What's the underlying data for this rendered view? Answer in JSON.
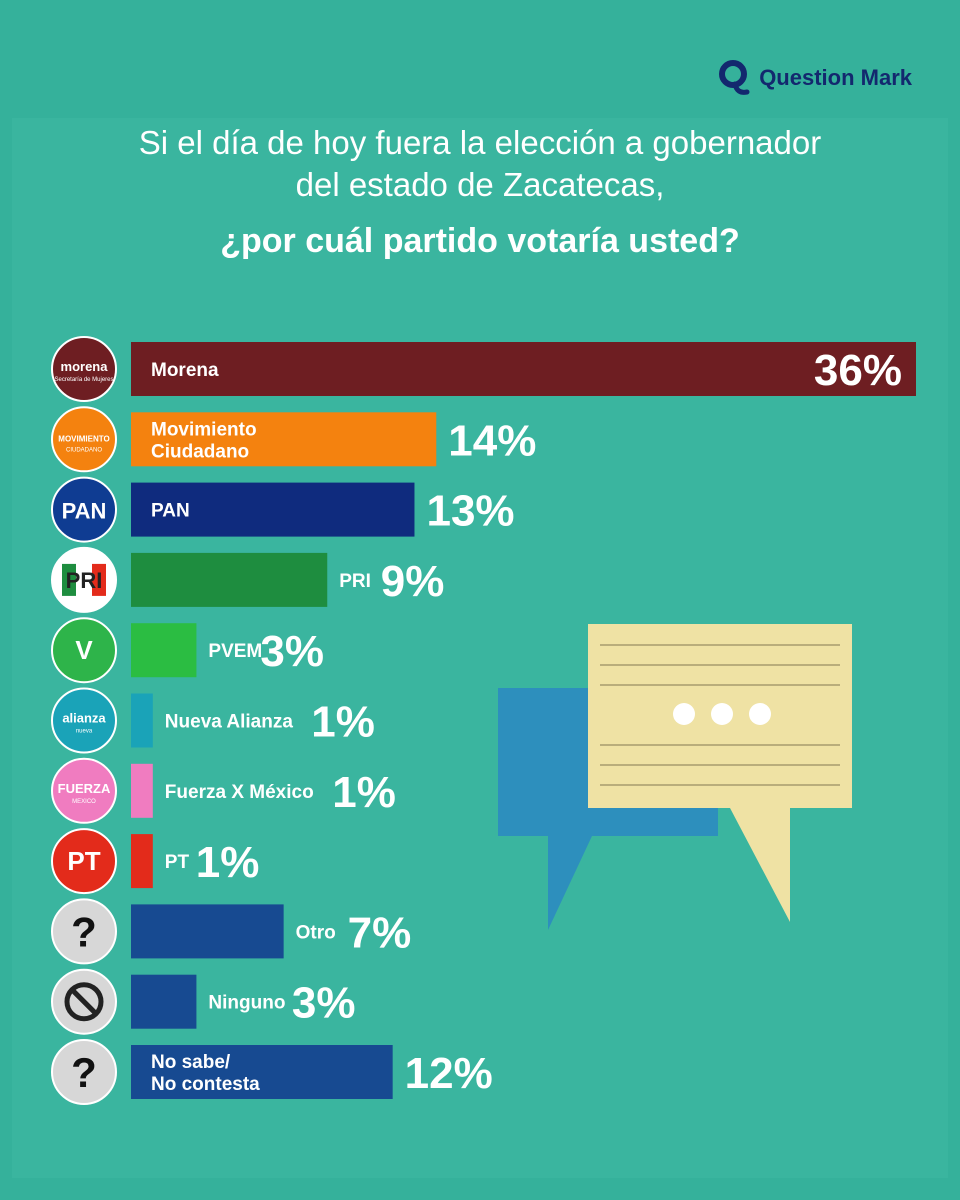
{
  "brand": {
    "name": "Question Mark",
    "mark": "Q"
  },
  "title": {
    "line1": "Si el día de hoy fuera la elección a gobernador",
    "line2": "del estado de Zacatecas,",
    "line3": "¿por cuál partido votaría usted?"
  },
  "colors": {
    "background": "#35b19b",
    "accent_dark": "#13286e"
  },
  "chart_data": {
    "type": "bar",
    "orientation": "horizontal",
    "title": "¿por cuál partido votaría usted?",
    "unit": "%",
    "categories": [
      "Morena",
      "Movimiento Ciudadano",
      "PAN",
      "PRI",
      "PVEM",
      "Nueva Alianza",
      "Fuerza X México",
      "PT",
      "Otro",
      "Ninguno",
      "No sabe/ No contesta"
    ],
    "values": [
      36,
      14,
      13,
      9,
      3,
      1,
      1,
      1,
      7,
      3,
      12
    ],
    "value_labels": [
      "36%",
      "14%",
      "13%",
      "9%",
      "3%",
      "1%",
      "1%",
      "1%",
      "7%",
      "3%",
      "12%"
    ],
    "label_lines": [
      [
        "Morena"
      ],
      [
        "Movimiento",
        "Ciudadano"
      ],
      [
        "PAN"
      ],
      [
        "PRI"
      ],
      [
        "PVEM"
      ],
      [
        "Nueva Alianza"
      ],
      [
        "Fuerza X México"
      ],
      [
        "PT"
      ],
      [
        "Otro"
      ],
      [
        "Ninguno"
      ],
      [
        "No sabe/",
        "No contesta"
      ]
    ],
    "colors": [
      "#6e1e22",
      "#f4820f",
      "#0f2b7e",
      "#1e8d3f",
      "#2bbd42",
      "#1aa3b8",
      "#f07cc0",
      "#e32b1b",
      "#174a91",
      "#174a91",
      "#174a91"
    ],
    "logos": [
      {
        "icon": "morena-logo-icon",
        "text": "morena",
        "subtext": "Secretaría de Mujeres",
        "bg": "#6e1e22"
      },
      {
        "icon": "movimiento-ciudadano-logo-icon",
        "text": "MOVIMIENTO",
        "subtext": "CIUDADANO",
        "bg": "#f4820f"
      },
      {
        "icon": "pan-logo-icon",
        "text": "PAN",
        "bg": "#0f3c92"
      },
      {
        "icon": "pri-logo-icon",
        "text": "PRI",
        "bg": "#ffffff"
      },
      {
        "icon": "pvem-logo-icon",
        "text": "V",
        "bg": "#2eb44a"
      },
      {
        "icon": "nueva-alianza-logo-icon",
        "text": "alianza",
        "subtext": "nueva",
        "bg": "#1aa3b8"
      },
      {
        "icon": "fuerza-x-mexico-logo-icon",
        "text": "FUERZA",
        "subtext": "MEXICO",
        "bg": "#f07cc0"
      },
      {
        "icon": "pt-logo-icon",
        "text": "PT",
        "bg": "#e32b1b"
      },
      {
        "icon": "question-mark-icon",
        "text": "?",
        "bg": "#d7d7d7"
      },
      {
        "icon": "no-symbol-icon",
        "text": "",
        "bg": "#d7d7d7"
      },
      {
        "icon": "question-mark-icon",
        "text": "?",
        "bg": "#d7d7d7"
      }
    ],
    "xlim": [
      0,
      36
    ]
  }
}
